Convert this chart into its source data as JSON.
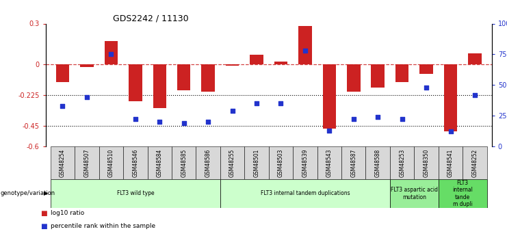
{
  "title": "GDS2242 / 11130",
  "samples": [
    "GSM48254",
    "GSM48507",
    "GSM48510",
    "GSM48546",
    "GSM48584",
    "GSM48585",
    "GSM48586",
    "GSM48255",
    "GSM48501",
    "GSM48503",
    "GSM48539",
    "GSM48543",
    "GSM48587",
    "GSM48588",
    "GSM48253",
    "GSM48350",
    "GSM48541",
    "GSM48252"
  ],
  "log10_ratio": [
    -0.13,
    -0.02,
    0.17,
    -0.27,
    -0.32,
    -0.19,
    -0.2,
    -0.01,
    0.07,
    0.02,
    0.28,
    -0.47,
    -0.2,
    -0.17,
    -0.13,
    -0.07,
    -0.49,
    0.08
  ],
  "percentile_rank": [
    33,
    40,
    75,
    22,
    20,
    19,
    20,
    29,
    35,
    35,
    78,
    13,
    22,
    24,
    22,
    48,
    12,
    42
  ],
  "groups": [
    {
      "label": "FLT3 wild type",
      "start": 0,
      "end": 6,
      "color": "#ccffcc"
    },
    {
      "label": "FLT3 internal tandem duplications",
      "start": 7,
      "end": 13,
      "color": "#ccffcc"
    },
    {
      "label": "FLT3 aspartic acid\nmutation",
      "start": 14,
      "end": 15,
      "color": "#99ee99"
    },
    {
      "label": "FLT3\ninternal\ntande\nm dupli",
      "start": 16,
      "end": 17,
      "color": "#66dd66"
    }
  ],
  "ylim_left": [
    -0.6,
    0.3
  ],
  "ylim_right": [
    0,
    100
  ],
  "yticks_left": [
    0.3,
    0.0,
    -0.225,
    -0.45,
    -0.6
  ],
  "yticks_right": [
    100,
    75,
    50,
    25,
    0
  ],
  "bar_color": "#cc2222",
  "dot_color": "#2233cc",
  "background_color": "#ffffff",
  "tick_bg_color": "#d8d8d8",
  "dotted_lines": [
    -0.225,
    -0.45
  ]
}
